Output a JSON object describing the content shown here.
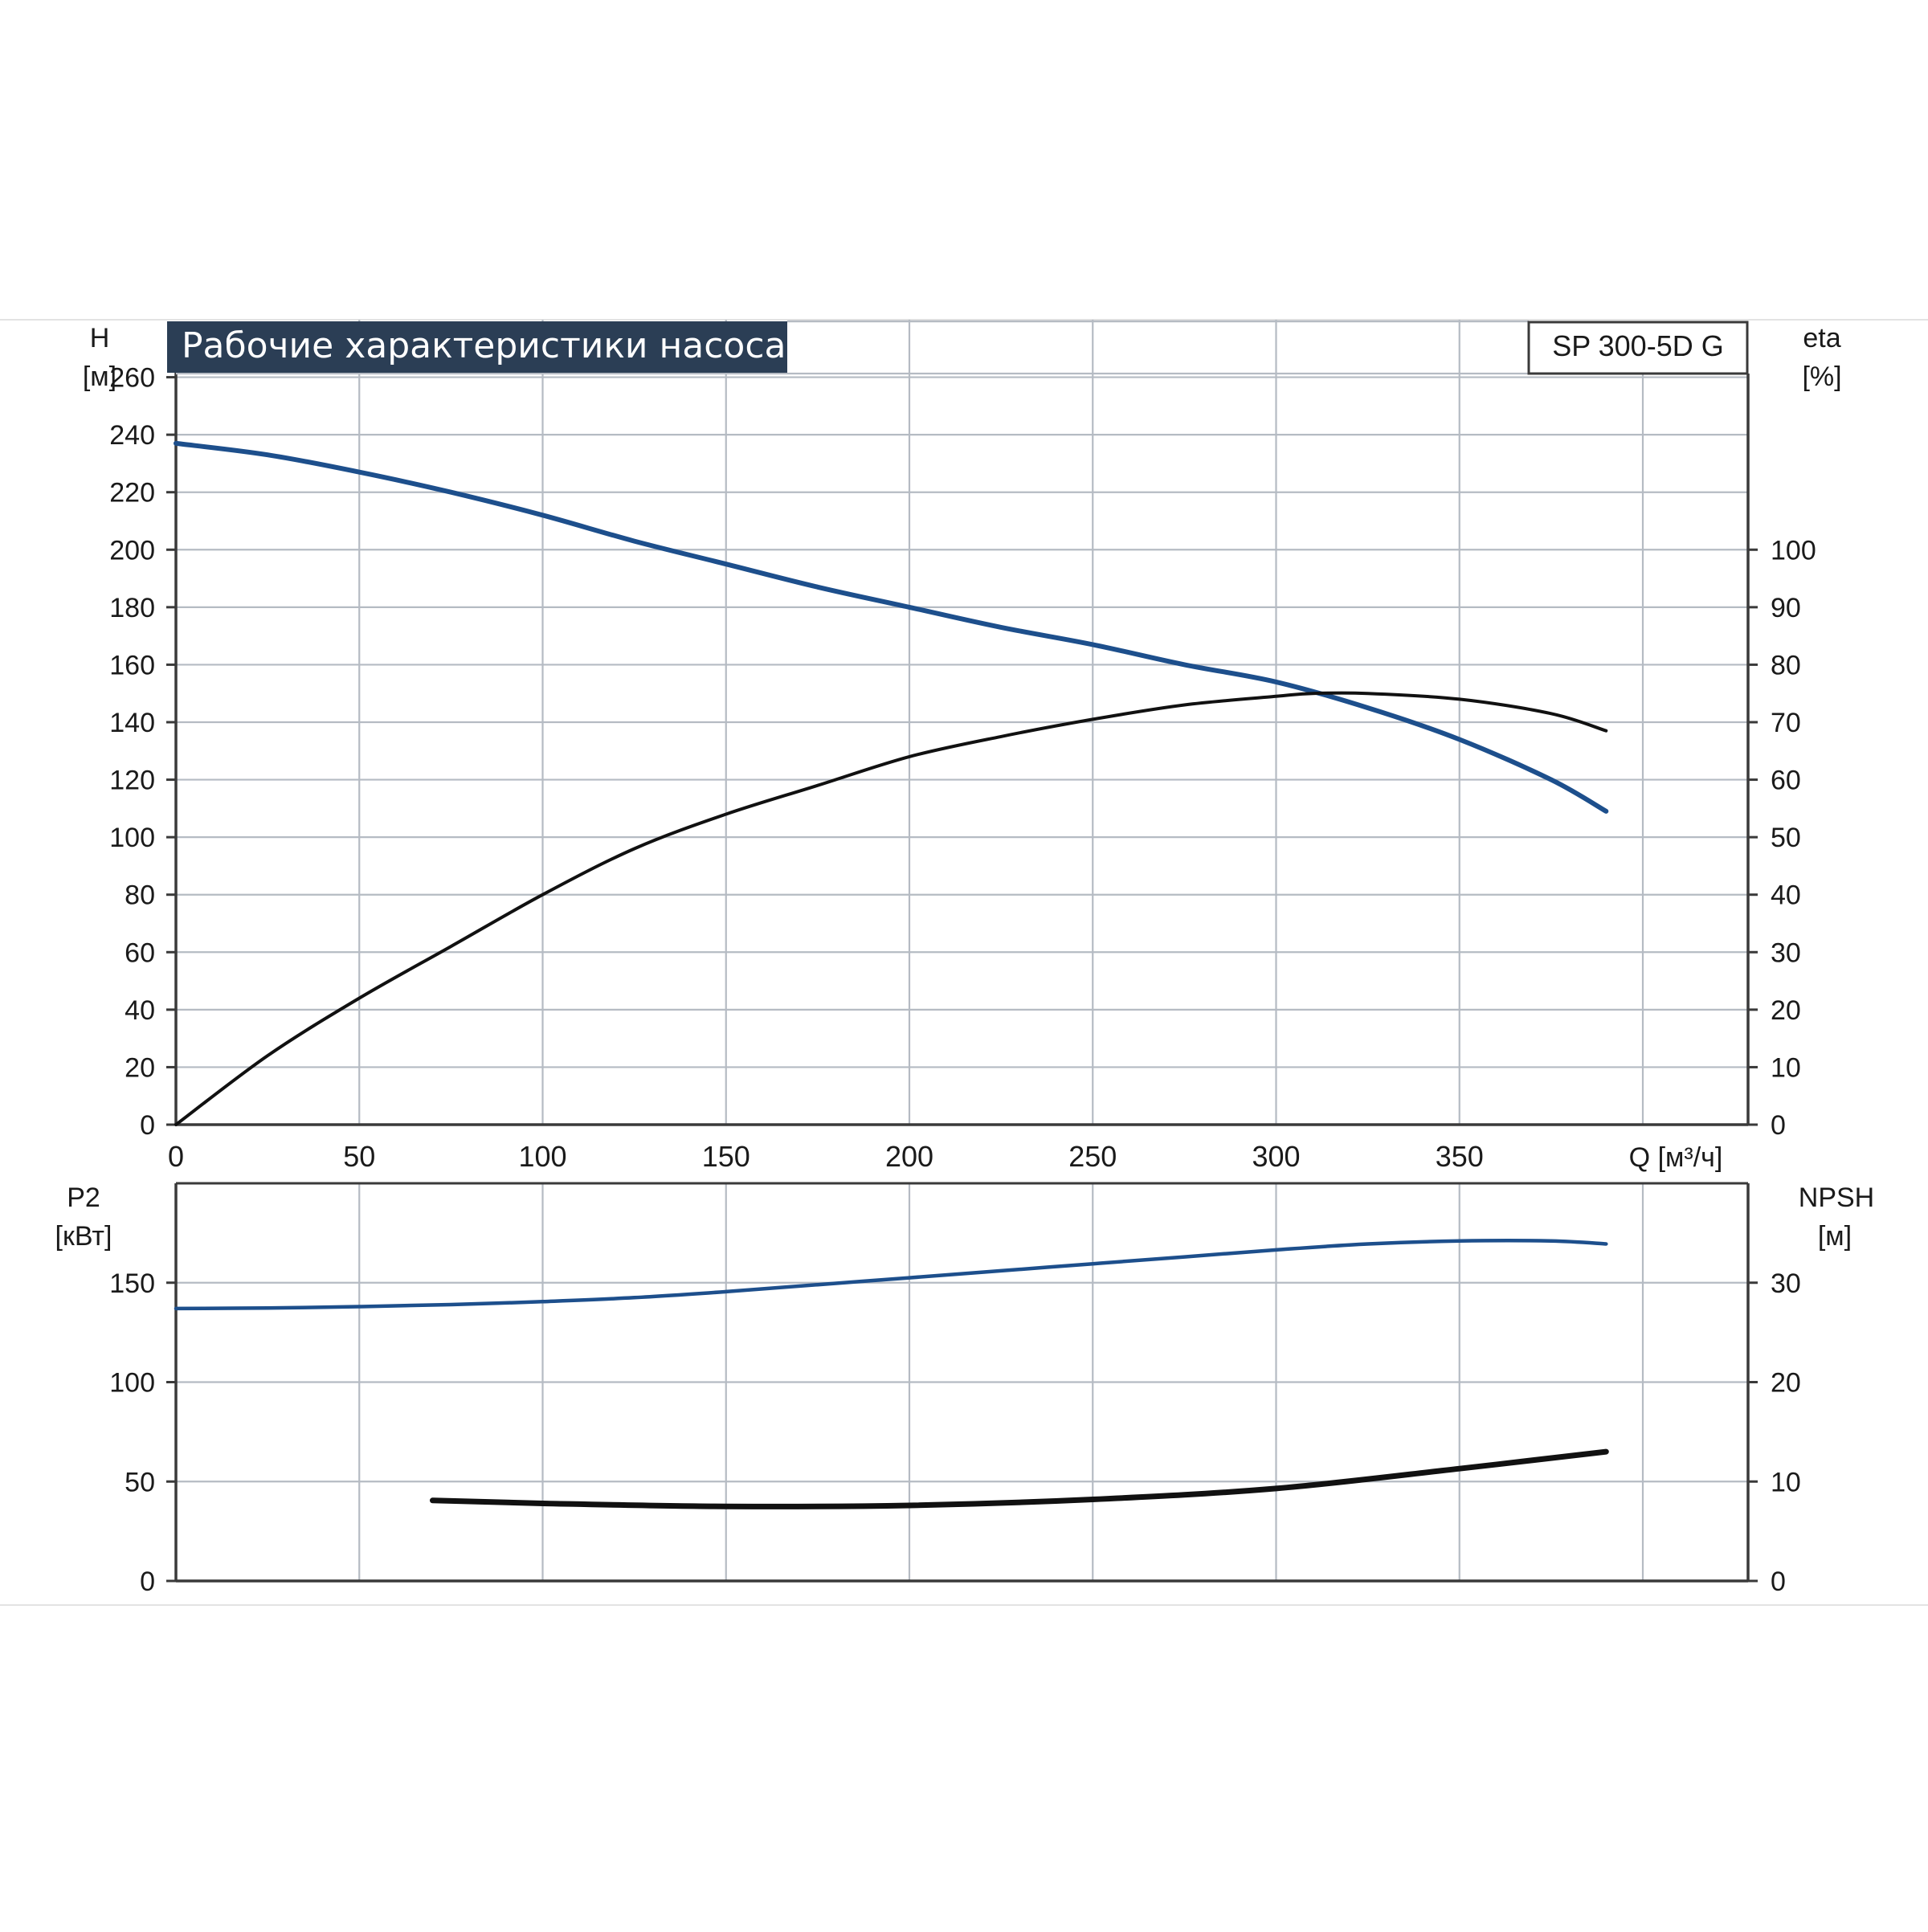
{
  "colors": {
    "background": "#ffffff",
    "grid": "#b5bbc3",
    "axis": "#3a3a3a",
    "title_bg": "#2b3e55",
    "title_fg": "#ffffff",
    "series_blue": "#1d4f8c",
    "series_black": "#111111"
  },
  "header": {
    "title": "Рабочие характеристики насоса",
    "model": "SP 300-5D G"
  },
  "chart_data": [
    {
      "type": "line",
      "x_axis": {
        "label": "Q [м³/ч]",
        "range": [
          0,
          430
        ],
        "ticks": [
          0,
          50,
          100,
          150,
          200,
          250,
          300,
          350
        ]
      },
      "y_left": {
        "label": "H",
        "unit": "[м]",
        "range": [
          0,
          280
        ],
        "ticks": [
          0,
          20,
          40,
          60,
          80,
          100,
          120,
          140,
          160,
          180,
          200,
          220,
          240,
          260
        ]
      },
      "y_right": {
        "label": "eta",
        "unit": "[%]",
        "range": [
          0,
          140
        ],
        "ticks": [
          0,
          10,
          20,
          30,
          40,
          50,
          60,
          70,
          80,
          90,
          100
        ]
      },
      "grid": true,
      "series": [
        {
          "axis": "left",
          "color": "#1d4f8c",
          "x": [
            0,
            25,
            50,
            75,
            100,
            125,
            150,
            175,
            200,
            225,
            250,
            275,
            300,
            325,
            350,
            375,
            390
          ],
          "y": [
            237,
            233,
            227,
            220,
            212,
            203,
            195,
            187,
            180,
            173,
            167,
            160,
            154,
            145,
            134,
            120,
            109
          ]
        },
        {
          "axis": "right",
          "color": "#111111",
          "x": [
            0,
            25,
            50,
            75,
            100,
            125,
            150,
            175,
            200,
            225,
            250,
            275,
            300,
            310,
            325,
            350,
            375,
            390
          ],
          "y": [
            0,
            12,
            22,
            31,
            40,
            48,
            54,
            59,
            64,
            67.5,
            70.5,
            73,
            74.5,
            75,
            75,
            74,
            71.5,
            68.5
          ]
        }
      ]
    },
    {
      "type": "line",
      "x_axis": {
        "range": [
          0,
          430
        ],
        "ticks": [
          0,
          50,
          100,
          150,
          200,
          250,
          300,
          350
        ]
      },
      "y_left": {
        "label": "P2",
        "unit": "[кВт]",
        "range": [
          0,
          200
        ],
        "ticks": [
          0,
          50,
          100,
          150
        ]
      },
      "y_right": {
        "label": "NPSH",
        "unit": "[м]",
        "range": [
          0,
          40
        ],
        "ticks": [
          0,
          10,
          20,
          30
        ]
      },
      "grid": true,
      "series": [
        {
          "axis": "left",
          "color": "#1d4f8c",
          "x": [
            0,
            25,
            50,
            75,
            100,
            125,
            150,
            175,
            200,
            225,
            250,
            275,
            300,
            325,
            350,
            375,
            390
          ],
          "y": [
            137,
            137.3,
            138,
            139,
            140.5,
            142.5,
            145.5,
            149,
            152.5,
            156,
            159.5,
            163,
            166.5,
            169.5,
            171,
            171,
            169.5
          ]
        },
        {
          "axis": "right",
          "color": "#111111",
          "x": [
            70,
            100,
            150,
            200,
            250,
            300,
            350,
            390
          ],
          "y": [
            8.1,
            7.8,
            7.5,
            7.6,
            8.2,
            9.3,
            11.3,
            13
          ]
        }
      ]
    }
  ]
}
